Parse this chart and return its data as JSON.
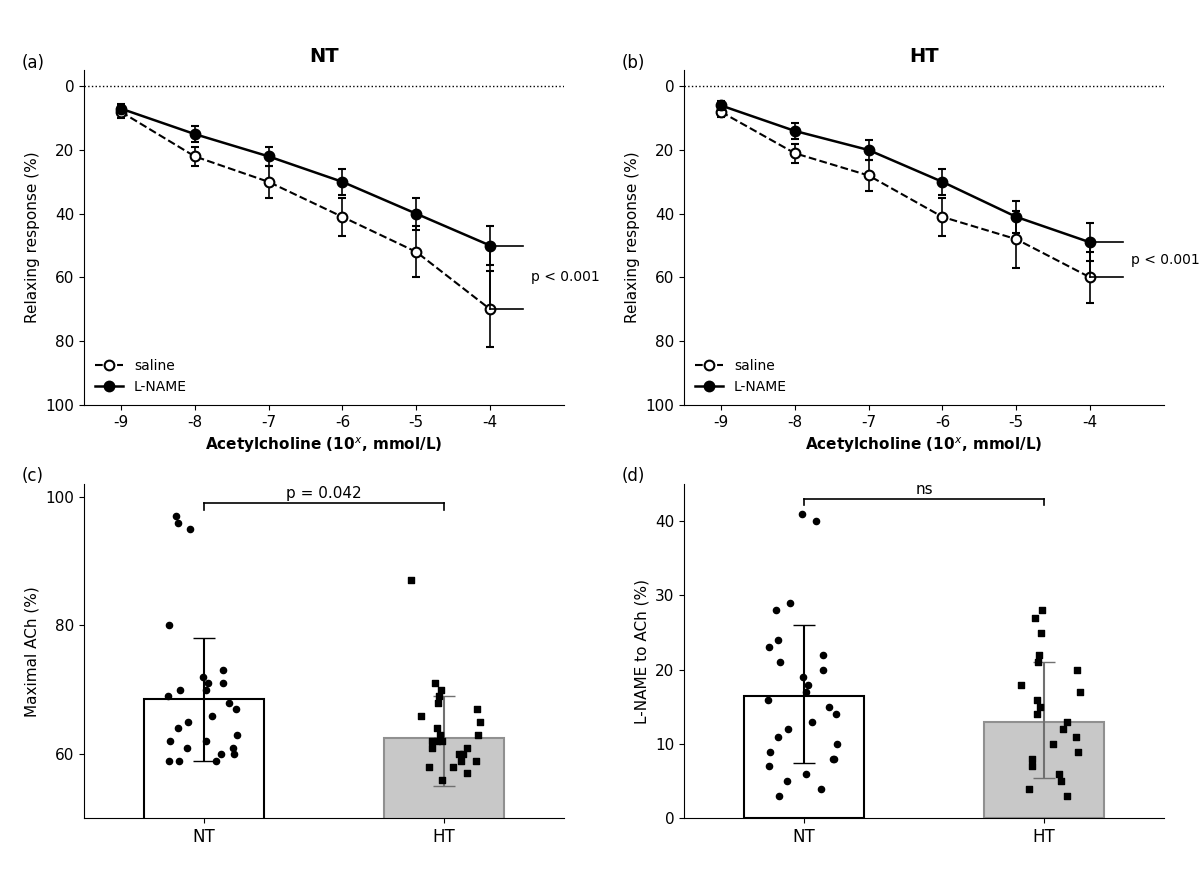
{
  "panel_a_title": "NT",
  "panel_b_title": "HT",
  "panel_c_ylabel": "Maximal ACh (%)",
  "panel_d_ylabel": "L-NAME to ACh (%)",
  "relaxing_ylabel": "Relaxing response (%)",
  "x_vals": [
    -9,
    -8,
    -7,
    -6,
    -5,
    -4
  ],
  "NT_saline_y": [
    8,
    22,
    30,
    41,
    52,
    70
  ],
  "NT_saline_err": [
    2,
    3,
    5,
    6,
    8,
    12
  ],
  "NT_lname_y": [
    7,
    15,
    22,
    30,
    40,
    50
  ],
  "NT_lname_err": [
    1.5,
    2.5,
    3,
    4,
    5,
    6
  ],
  "HT_saline_y": [
    8,
    21,
    28,
    41,
    48,
    60
  ],
  "HT_saline_err": [
    1.5,
    3,
    5,
    6,
    9,
    8
  ],
  "HT_lname_y": [
    6,
    14,
    20,
    30,
    41,
    49
  ],
  "HT_lname_err": [
    1.5,
    2.5,
    3,
    4,
    5,
    6
  ],
  "NT_bar_mean": 68.5,
  "NT_bar_median": 59,
  "NT_bar_sd_upper": 78,
  "NT_bar_sd_lower": 59,
  "HT_bar_mean": 62.5,
  "HT_bar_median": 59,
  "HT_bar_sd_upper": 69,
  "HT_bar_sd_lower": 55,
  "NT_dots_c": [
    59,
    60,
    61,
    62,
    59,
    60,
    61,
    62,
    63,
    64,
    65,
    66,
    67,
    68,
    69,
    70,
    71,
    72,
    73,
    70,
    71,
    80,
    96,
    97,
    95,
    59
  ],
  "HT_dots_c": [
    56,
    57,
    58,
    59,
    60,
    61,
    62,
    63,
    58,
    59,
    60,
    61,
    62,
    63,
    64,
    65,
    66,
    67,
    68,
    69,
    70,
    71,
    62,
    87
  ],
  "NT_d_mean": 16.5,
  "NT_d_median": 7.5,
  "NT_d_sd_upper": 26,
  "NT_d_sd_lower": 7.5,
  "HT_d_mean": 13,
  "HT_d_median": 5.5,
  "HT_d_sd_upper": 21,
  "HT_d_sd_lower": 5.5,
  "NT_dots_d": [
    3,
    4,
    5,
    6,
    7,
    8,
    8,
    9,
    10,
    11,
    12,
    13,
    14,
    15,
    16,
    17,
    18,
    19,
    20,
    21,
    22,
    23,
    24,
    28,
    29,
    40,
    41
  ],
  "HT_dots_d": [
    3,
    4,
    5,
    6,
    7,
    8,
    9,
    10,
    11,
    12,
    13,
    14,
    15,
    16,
    17,
    18,
    20,
    21,
    22,
    25,
    27,
    28
  ],
  "p_ab": "p < 0.001",
  "p_c": "p = 0.042",
  "p_d": "ns"
}
